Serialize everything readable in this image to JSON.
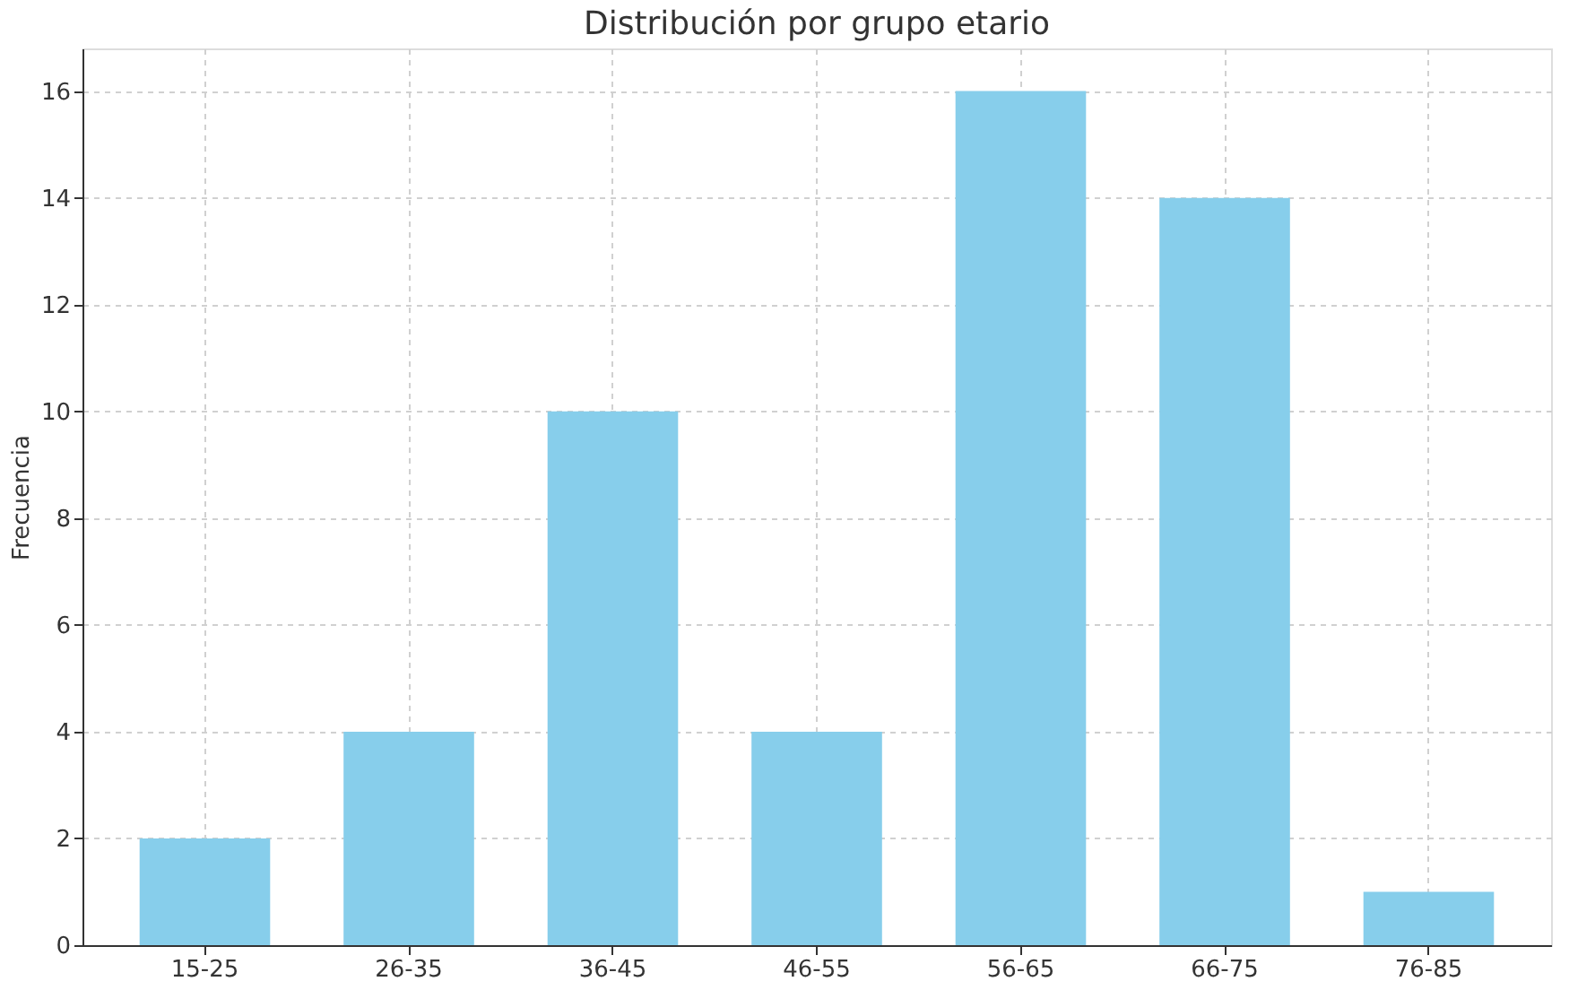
{
  "chart_data": {
    "type": "bar",
    "title": "Distribución por grupo etario",
    "ylabel": "Frecuencia",
    "categories": [
      "15-25",
      "26-35",
      "36-45",
      "46-55",
      "56-65",
      "66-75",
      "76-85"
    ],
    "values": [
      2,
      4,
      10,
      4,
      16,
      14,
      1
    ],
    "color": "#87ceeb",
    "ylim": [
      0,
      16.8
    ],
    "yticks": [
      0,
      2,
      4,
      6,
      8,
      10,
      12,
      14,
      16
    ],
    "grid": true
  }
}
